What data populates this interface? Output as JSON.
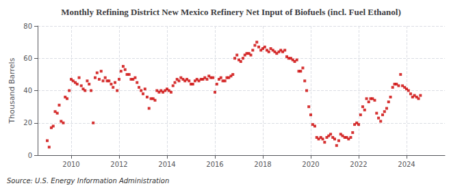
{
  "chart_data": {
    "type": "scatter",
    "title": "Monthly Refining District New Mexico Refinery Net Input of Biofuels (incl. Fuel Ethanol)",
    "ylabel": "Thousand Barrels",
    "annotations": [
      "Source: U.S. Energy Information Administration"
    ],
    "color": "#cc0000",
    "marker": "square",
    "grid": true,
    "xlim": [
      2008.6,
      2025.6
    ],
    "xticks": [
      2010,
      2012,
      2014,
      2016,
      2018,
      2020,
      2022,
      2024
    ],
    "ylim": [
      0,
      80
    ],
    "yticks": [
      0,
      20,
      40,
      60,
      80
    ],
    "x": [
      2009.0,
      2009.08,
      2009.17,
      2009.25,
      2009.33,
      2009.42,
      2009.5,
      2009.58,
      2009.67,
      2009.75,
      2009.83,
      2009.92,
      2010.0,
      2010.08,
      2010.17,
      2010.25,
      2010.33,
      2010.42,
      2010.5,
      2010.58,
      2010.67,
      2010.75,
      2010.83,
      2010.92,
      2011.0,
      2011.08,
      2011.17,
      2011.25,
      2011.33,
      2011.42,
      2011.5,
      2011.58,
      2011.67,
      2011.75,
      2011.83,
      2011.92,
      2012.0,
      2012.08,
      2012.17,
      2012.25,
      2012.33,
      2012.42,
      2012.5,
      2012.58,
      2012.67,
      2012.75,
      2012.83,
      2012.92,
      2013.0,
      2013.08,
      2013.17,
      2013.25,
      2013.33,
      2013.42,
      2013.5,
      2013.58,
      2013.67,
      2013.75,
      2013.83,
      2013.92,
      2014.0,
      2014.08,
      2014.17,
      2014.25,
      2014.33,
      2014.42,
      2014.5,
      2014.58,
      2014.67,
      2014.75,
      2014.83,
      2014.92,
      2015.0,
      2015.08,
      2015.17,
      2015.25,
      2015.33,
      2015.42,
      2015.5,
      2015.58,
      2015.67,
      2015.75,
      2015.83,
      2015.92,
      2016.0,
      2016.08,
      2016.17,
      2016.25,
      2016.33,
      2016.42,
      2016.5,
      2016.58,
      2016.67,
      2016.75,
      2016.83,
      2016.92,
      2017.0,
      2017.08,
      2017.17,
      2017.25,
      2017.33,
      2017.42,
      2017.5,
      2017.58,
      2017.67,
      2017.75,
      2017.83,
      2017.92,
      2018.0,
      2018.08,
      2018.17,
      2018.25,
      2018.33,
      2018.42,
      2018.5,
      2018.58,
      2018.67,
      2018.75,
      2018.83,
      2018.92,
      2019.0,
      2019.08,
      2019.17,
      2019.25,
      2019.33,
      2019.42,
      2019.5,
      2019.58,
      2019.67,
      2019.75,
      2019.83,
      2019.92,
      2020.0,
      2020.08,
      2020.17,
      2020.25,
      2020.33,
      2020.42,
      2020.5,
      2020.58,
      2020.67,
      2020.75,
      2020.83,
      2020.92,
      2021.0,
      2021.08,
      2021.17,
      2021.25,
      2021.33,
      2021.42,
      2021.5,
      2021.58,
      2021.67,
      2021.75,
      2021.83,
      2021.92,
      2022.0,
      2022.08,
      2022.17,
      2022.25,
      2022.33,
      2022.42,
      2022.5,
      2022.58,
      2022.67,
      2022.75,
      2022.83,
      2022.92,
      2023.0,
      2023.08,
      2023.17,
      2023.25,
      2023.33,
      2023.42,
      2023.5,
      2023.58,
      2023.67,
      2023.75,
      2023.83,
      2023.92,
      2024.0,
      2024.08,
      2024.17,
      2024.25,
      2024.33,
      2024.42,
      2024.5,
      2024.58
    ],
    "values": [
      9,
      5,
      17,
      18,
      27,
      26,
      31,
      21,
      20,
      36,
      35,
      40,
      47,
      46,
      45,
      44,
      48,
      43,
      41,
      40,
      46,
      44,
      40,
      20,
      48,
      51,
      47,
      52,
      46,
      48,
      46,
      46,
      44,
      42,
      45,
      40,
      47,
      52,
      55,
      53,
      50,
      50,
      47,
      47,
      48,
      45,
      42,
      40,
      38,
      41,
      36,
      29,
      35,
      35,
      34,
      40,
      39,
      40,
      39,
      40,
      41,
      40,
      39,
      43,
      45,
      47,
      46,
      48,
      47,
      46,
      47,
      46,
      44,
      44,
      46,
      47,
      46,
      47,
      47,
      48,
      47,
      49,
      48,
      48,
      39,
      44,
      47,
      48,
      46,
      46,
      48,
      48,
      49,
      50,
      60,
      62,
      59,
      58,
      60,
      62,
      63,
      63,
      62,
      65,
      68,
      70,
      67,
      65,
      66,
      67,
      65,
      64,
      66,
      65,
      64,
      63,
      64,
      65,
      64,
      65,
      61,
      60,
      60,
      59,
      58,
      59,
      52,
      52,
      54,
      46,
      40,
      30,
      25,
      19,
      18,
      11,
      10,
      11,
      10,
      8,
      11,
      12,
      13,
      11,
      10,
      6,
      9,
      13,
      12,
      11,
      11,
      10,
      11,
      14,
      19,
      20,
      19,
      25,
      30,
      28,
      35,
      33,
      35,
      35,
      34,
      26,
      23,
      21,
      25,
      27,
      29,
      33,
      36,
      42,
      44,
      44,
      43,
      50,
      43,
      42,
      41,
      40,
      38,
      36,
      37,
      36,
      35,
      37
    ]
  }
}
